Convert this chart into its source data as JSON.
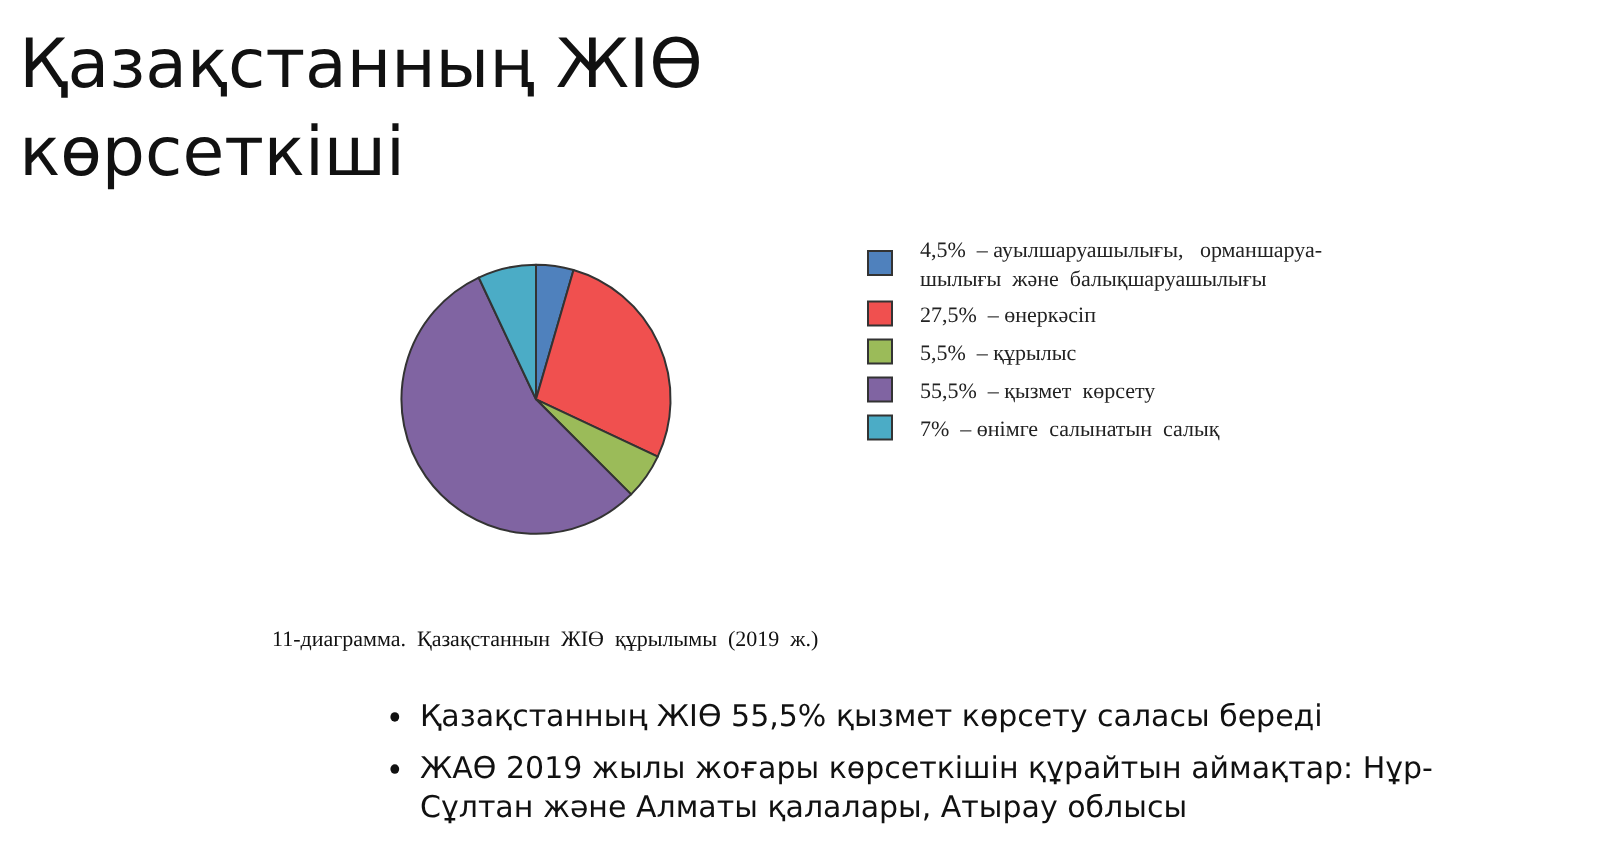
{
  "chart_data": {
    "type": "pie",
    "title": "Қазақстанның ЖІӨ\nкөрсеткіші",
    "categories": [
      "4,5%  – ауылшаруашылығы,   орманшаруа-\nшылығы  және  балықшаруашылығы",
      "27,5%  – өнеркәсіп",
      "5,5%  – құрылыс",
      "55,5%  – қызмет  көрсету",
      "7%  – өнімге  салынатын  салық"
    ],
    "values": [
      4.5,
      27.5,
      5.5,
      55.5,
      7
    ],
    "colors": [
      "#4f81bd",
      "#f0504f",
      "#9bbb59",
      "#8064a2",
      "#4bacc6"
    ],
    "legend": "right",
    "annotations": [
      "11-диаграмма.  Қазақстаннын  ЖІӨ  құрылымы  (2019  ж.)",
      "Қазақстанның ЖІӨ 55,5% қызмет көрсету саласы береді",
      "ЖАӨ 2019 жылы жоғары көрсеткішін құрайтын аймақтар: Нұр-\nСұлтан және Алматы қалалары, Атырау облысы"
    ]
  }
}
